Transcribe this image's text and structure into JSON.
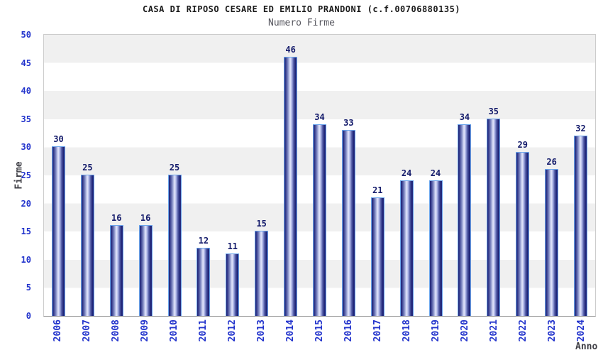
{
  "chart_data": {
    "type": "bar",
    "title": "CASA DI RIPOSO CESARE ED EMILIO PRANDONI (c.f.00706880135)",
    "subtitle": "Numero Firme",
    "xlabel": "Anno",
    "ylabel": "Firme",
    "categories": [
      "2006",
      "2007",
      "2008",
      "2009",
      "2010",
      "2011",
      "2012",
      "2013",
      "2014",
      "2015",
      "2016",
      "2017",
      "2018",
      "2019",
      "2020",
      "2021",
      "2022",
      "2023",
      "2024"
    ],
    "values": [
      30,
      25,
      16,
      16,
      25,
      12,
      11,
      15,
      46,
      34,
      33,
      21,
      24,
      24,
      34,
      35,
      29,
      26,
      32
    ],
    "ylim": [
      0,
      50
    ],
    "ytick_step": 5,
    "yticks": [
      0,
      5,
      10,
      15,
      20,
      25,
      30,
      35,
      40,
      45,
      50
    ],
    "grid": "alternating horizontal gray/white bands every 5 units",
    "legend": "none",
    "colors": {
      "bar_dark": "#1b2073",
      "bar_highlight": "#e2e5fa",
      "bar_border": "#6ca6ec",
      "value_label": "#141b6b",
      "tick_label": "#2233cc",
      "axis_title": "#3f3f46",
      "title": "#1a1a1a",
      "subtitle": "#56565e",
      "band_gray": "#f0f0f0",
      "band_white": "#ffffff",
      "plot_border": "#cccccc"
    }
  }
}
